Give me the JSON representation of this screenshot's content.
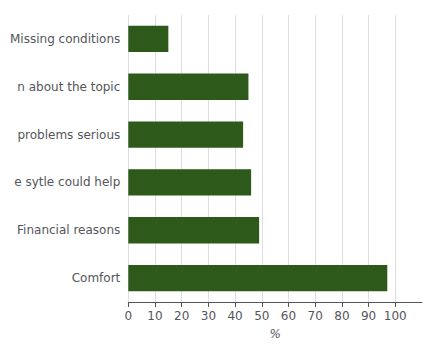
{
  "chart_data": {
    "type": "bar",
    "orientation": "horizontal",
    "categories": [
      "Missing conditions",
      "n about the topic",
      "problems serious",
      "e sytle could help",
      "Financial reasons",
      "Comfort"
    ],
    "values": [
      15,
      45,
      43,
      46,
      49,
      97
    ],
    "color": "#2d5a1b",
    "xlabel": "%",
    "xlim": [
      0,
      110
    ],
    "xticks": [
      0,
      10,
      20,
      30,
      40,
      50,
      60,
      70,
      80,
      90,
      100
    ],
    "grid": true
  }
}
